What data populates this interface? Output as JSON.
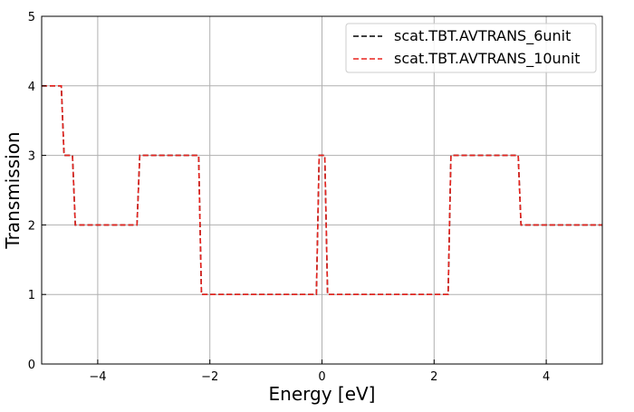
{
  "chart_data": {
    "type": "line",
    "title": "",
    "xlabel": "Energy [eV]",
    "ylabel": "Transmission",
    "xlim": [
      -5,
      5
    ],
    "ylim": [
      0,
      5
    ],
    "xticks": [
      -4,
      -2,
      0,
      2,
      4
    ],
    "xtick_labels": [
      "−4",
      "−2",
      "0",
      "2",
      "4"
    ],
    "yticks": [
      0,
      1,
      2,
      3,
      4,
      5
    ],
    "ytick_labels": [
      "0",
      "1",
      "2",
      "3",
      "4",
      "5"
    ],
    "grid": true,
    "legend_position": "top-right",
    "series": [
      {
        "name": "scat.TBT.AVTRANS_6unit",
        "color": "#000000",
        "dash": "dashed",
        "x": [
          -5.0,
          -4.65,
          -4.6,
          -4.45,
          -4.4,
          -3.3,
          -3.25,
          -2.2,
          -2.15,
          -0.1,
          -0.05,
          0.05,
          0.1,
          2.25,
          2.3,
          3.5,
          3.55,
          5.0
        ],
        "y": [
          4,
          4,
          3,
          3,
          2,
          2,
          3,
          3,
          1,
          1,
          3,
          3,
          1,
          1,
          3,
          3,
          2,
          2
        ]
      },
      {
        "name": "scat.TBT.AVTRANS_10unit",
        "color": "#e8241f",
        "dash": "dashed",
        "x": [
          -5.0,
          -4.65,
          -4.6,
          -4.45,
          -4.4,
          -3.3,
          -3.25,
          -2.2,
          -2.15,
          -0.1,
          -0.05,
          0.05,
          0.1,
          2.25,
          2.3,
          3.5,
          3.55,
          5.0
        ],
        "y": [
          4,
          4,
          3,
          3,
          2,
          2,
          3,
          3,
          1,
          1,
          3,
          3,
          1,
          1,
          3,
          3,
          2,
          2
        ]
      }
    ]
  }
}
